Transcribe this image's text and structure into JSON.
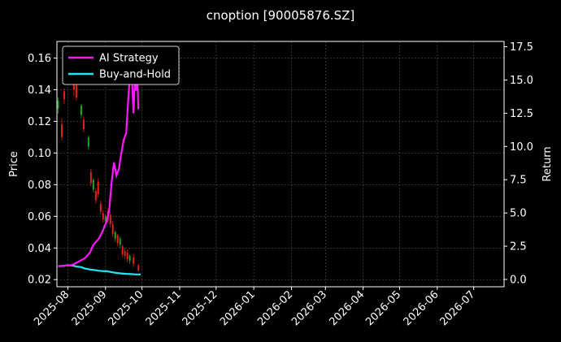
{
  "chart_data": {
    "type": "line",
    "title": "cnoption [90005876.SZ]",
    "ylabel_left": "Price",
    "ylabel_right": "Return",
    "x_ticks": [
      "2025-08",
      "2025-09",
      "2025-10",
      "2025-11",
      "2025-12",
      "2026-01",
      "2026-02",
      "2026-03",
      "2026-04",
      "2026-05",
      "2026-06",
      "2026-07"
    ],
    "left_ticks": [
      "0.02",
      "0.04",
      "0.06",
      "0.08",
      "0.10",
      "0.12",
      "0.14",
      "0.16"
    ],
    "right_ticks": [
      "0.0",
      "2.5",
      "5.0",
      "7.5",
      "10.0",
      "12.5",
      "15.0",
      "17.5"
    ],
    "x_range": [
      "2025-07-23",
      "2026-07-26"
    ],
    "ylim_left": [
      0.0155,
      0.1705
    ],
    "ylim_right": [
      -0.55,
      17.9
    ],
    "grid": true,
    "legend_position": "top-left",
    "colors": {
      "background": "#000000",
      "ai_strategy": "#ff17ff",
      "buy_and_hold": "#22e6f0",
      "candle_up": "#1fa81f",
      "candle_down": "#e0221b",
      "grid": "#555555"
    },
    "series": [
      {
        "name": "AI Strategy",
        "x": [
          "2025-07-24",
          "2025-07-28",
          "2025-08-01",
          "2025-08-05",
          "2025-08-08",
          "2025-08-12",
          "2025-08-15",
          "2025-08-19",
          "2025-08-22",
          "2025-08-26",
          "2025-08-29",
          "2025-09-02",
          "2025-09-04",
          "2025-09-06",
          "2025-09-08",
          "2025-09-10",
          "2025-09-12",
          "2025-09-14",
          "2025-09-16",
          "2025-09-18",
          "2025-09-20",
          "2025-09-22",
          "2025-09-24",
          "2025-09-25",
          "2025-09-26",
          "2025-09-27",
          "2025-09-28"
        ],
        "values": [
          1.0,
          1.02,
          1.05,
          1.1,
          1.25,
          1.45,
          1.6,
          2.0,
          2.6,
          3.0,
          3.5,
          4.4,
          5.2,
          7.3,
          8.8,
          7.8,
          8.3,
          9.5,
          10.5,
          11.0,
          14.0,
          16.5,
          12.5,
          14.8,
          14.2,
          16.2,
          12.8
        ]
      },
      {
        "name": "Buy-and-Hold",
        "x": [
          "2025-07-24",
          "2025-07-28",
          "2025-08-01",
          "2025-08-05",
          "2025-08-08",
          "2025-08-12",
          "2025-08-15",
          "2025-08-19",
          "2025-08-22",
          "2025-08-26",
          "2025-08-29",
          "2025-09-02",
          "2025-09-06",
          "2025-09-10",
          "2025-09-14",
          "2025-09-18",
          "2025-09-22",
          "2025-09-26",
          "2025-09-30"
        ],
        "values": [
          1.0,
          1.02,
          1.07,
          1.05,
          0.97,
          0.93,
          0.82,
          0.75,
          0.72,
          0.66,
          0.63,
          0.62,
          0.55,
          0.49,
          0.45,
          0.42,
          0.4,
          0.38,
          0.38
        ]
      }
    ],
    "candles": [
      {
        "date": "2025-07-24",
        "open": 0.128,
        "close": 0.133,
        "high": 0.135,
        "low": 0.125
      },
      {
        "date": "2025-07-27",
        "open": 0.118,
        "close": 0.11,
        "high": 0.122,
        "low": 0.108
      },
      {
        "date": "2025-07-29",
        "open": 0.139,
        "close": 0.134,
        "high": 0.141,
        "low": 0.131
      },
      {
        "date": "2025-08-06",
        "open": 0.149,
        "close": 0.14,
        "high": 0.151,
        "low": 0.136
      },
      {
        "date": "2025-08-08",
        "open": 0.143,
        "close": 0.135,
        "high": 0.145,
        "low": 0.133
      },
      {
        "date": "2025-08-12",
        "open": 0.124,
        "close": 0.13,
        "high": 0.131,
        "low": 0.122
      },
      {
        "date": "2025-08-14",
        "open": 0.121,
        "close": 0.115,
        "high": 0.123,
        "low": 0.113
      },
      {
        "date": "2025-08-18",
        "open": 0.104,
        "close": 0.11,
        "high": 0.111,
        "low": 0.102
      },
      {
        "date": "2025-08-20",
        "open": 0.088,
        "close": 0.081,
        "high": 0.09,
        "low": 0.079
      },
      {
        "date": "2025-08-22",
        "open": 0.077,
        "close": 0.083,
        "high": 0.084,
        "low": 0.075
      },
      {
        "date": "2025-08-24",
        "open": 0.076,
        "close": 0.07,
        "high": 0.078,
        "low": 0.068
      },
      {
        "date": "2025-08-26",
        "open": 0.082,
        "close": 0.074,
        "high": 0.084,
        "low": 0.072
      },
      {
        "date": "2025-08-28",
        "open": 0.068,
        "close": 0.063,
        "high": 0.07,
        "low": 0.061
      },
      {
        "date": "2025-08-30",
        "open": 0.062,
        "close": 0.058,
        "high": 0.064,
        "low": 0.056
      },
      {
        "date": "2025-09-01",
        "open": 0.057,
        "close": 0.06,
        "high": 0.061,
        "low": 0.055
      },
      {
        "date": "2025-09-03",
        "open": 0.063,
        "close": 0.058,
        "high": 0.065,
        "low": 0.056
      },
      {
        "date": "2025-09-05",
        "open": 0.061,
        "close": 0.055,
        "high": 0.063,
        "low": 0.053
      },
      {
        "date": "2025-09-07",
        "open": 0.055,
        "close": 0.049,
        "high": 0.057,
        "low": 0.047
      },
      {
        "date": "2025-09-09",
        "open": 0.046,
        "close": 0.05,
        "high": 0.051,
        "low": 0.044
      },
      {
        "date": "2025-09-11",
        "open": 0.048,
        "close": 0.043,
        "high": 0.049,
        "low": 0.041
      },
      {
        "date": "2025-09-13",
        "open": 0.042,
        "close": 0.046,
        "high": 0.047,
        "low": 0.04
      },
      {
        "date": "2025-09-15",
        "open": 0.041,
        "close": 0.036,
        "high": 0.042,
        "low": 0.034
      },
      {
        "date": "2025-09-17",
        "open": 0.038,
        "close": 0.035,
        "high": 0.04,
        "low": 0.033
      },
      {
        "date": "2025-09-19",
        "open": 0.037,
        "close": 0.033,
        "high": 0.039,
        "low": 0.031
      },
      {
        "date": "2025-09-21",
        "open": 0.032,
        "close": 0.035,
        "high": 0.036,
        "low": 0.03
      },
      {
        "date": "2025-09-24",
        "open": 0.034,
        "close": 0.03,
        "high": 0.036,
        "low": 0.028
      },
      {
        "date": "2025-09-28",
        "open": 0.029,
        "close": 0.026,
        "high": 0.03,
        "low": 0.025
      }
    ]
  }
}
